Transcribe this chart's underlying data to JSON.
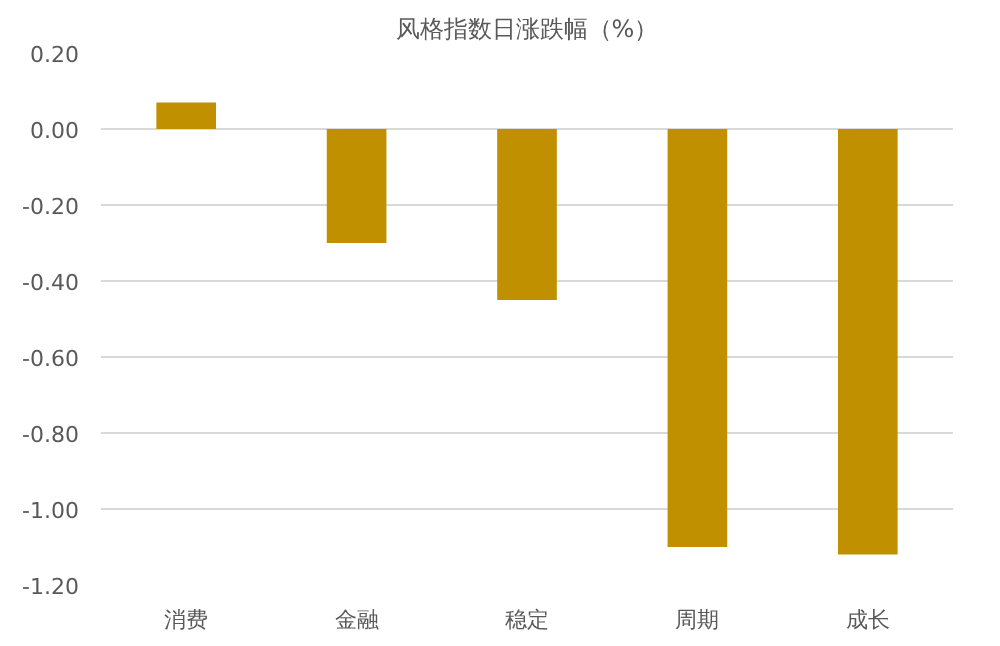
{
  "chart_data": {
    "type": "bar",
    "title": "风格指数日涨跌幅（%）",
    "categories": [
      "消费",
      "金融",
      "稳定",
      "周期",
      "成长"
    ],
    "values": [
      0.07,
      -0.3,
      -0.45,
      -1.1,
      -1.12
    ],
    "color": "#c09000",
    "ylim": [
      -1.2,
      0.2
    ],
    "yticks": [
      {
        "value": 0.2,
        "label": "0.20"
      },
      {
        "value": 0,
        "label": "0.00"
      },
      {
        "value": -0.2,
        "label": "-0.20"
      },
      {
        "value": -0.4,
        "label": "-0.40"
      },
      {
        "value": -0.6,
        "label": "-0.60"
      },
      {
        "value": -0.8,
        "label": "-0.80"
      },
      {
        "value": -1.0,
        "label": "-1.00"
      },
      {
        "value": -1.2,
        "label": "-1.20"
      }
    ],
    "grid": "y"
  }
}
